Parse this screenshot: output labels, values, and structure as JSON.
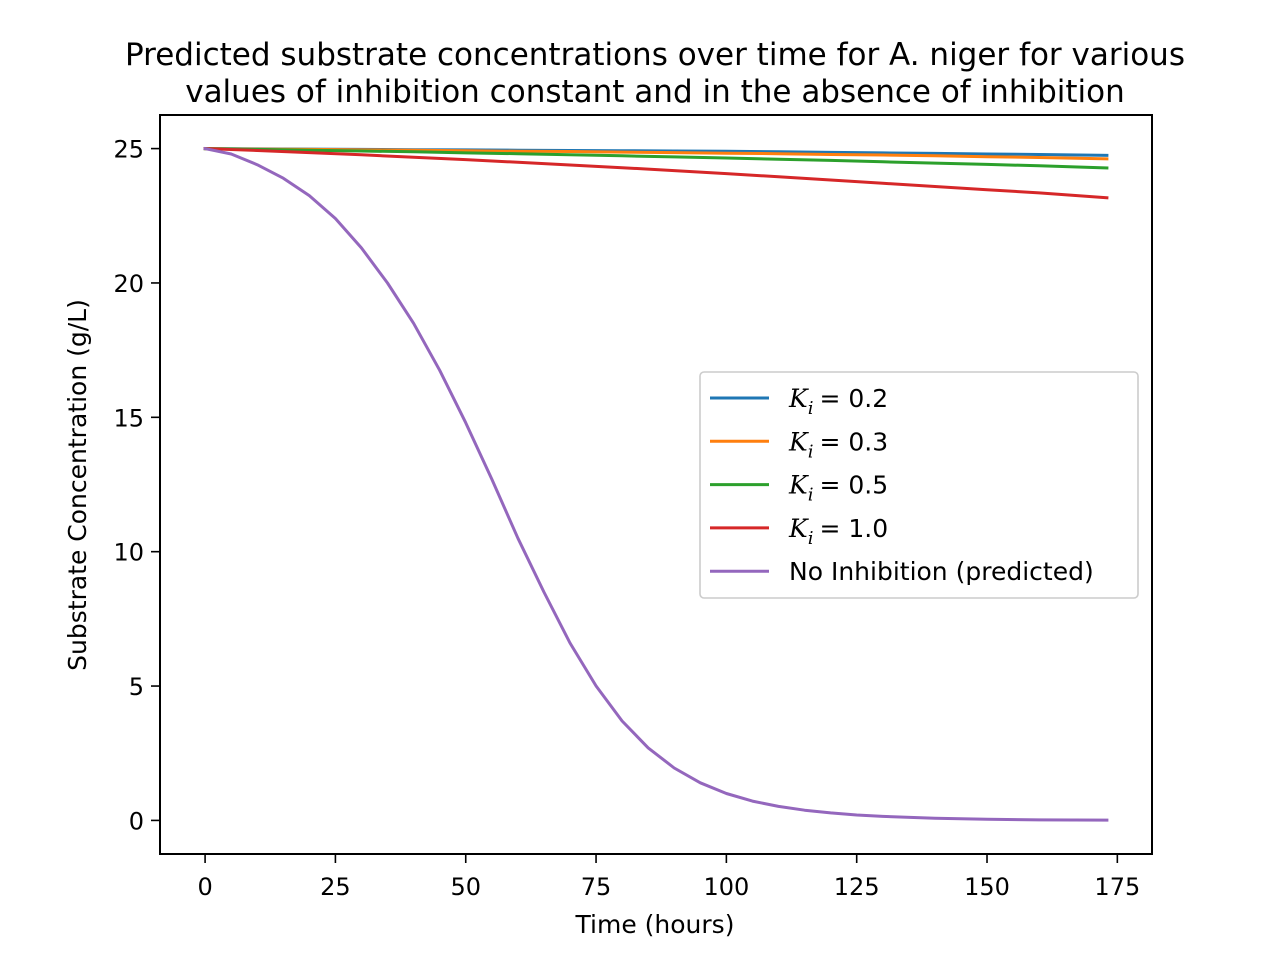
{
  "chart_data": {
    "type": "line",
    "title": [
      "Predicted substrate concentrations over time for A. niger for various",
      "values of inhibition constant and in the absence of inhibition"
    ],
    "xlabel": "Time (hours)",
    "ylabel": "Substrate Concentration (g/L)",
    "xlim": [
      -8.65,
      181.65
    ],
    "ylim": [
      -1.25,
      26.25
    ],
    "xticks": [
      0,
      25,
      50,
      75,
      100,
      125,
      150,
      175
    ],
    "yticks": [
      0,
      5,
      10,
      15,
      20,
      25
    ],
    "grid": false,
    "legend_position": "center-right",
    "x": [
      0,
      10,
      20,
      30,
      40,
      50,
      60,
      70,
      80,
      90,
      100,
      110,
      120,
      130,
      140,
      150,
      160,
      173
    ],
    "series": [
      {
        "name": "K_i = 0.2",
        "legend_parts": [
          "K",
          "i",
          "= 0.2"
        ],
        "color": "#1f77b4",
        "values": [
          25.0,
          24.99,
          24.98,
          24.97,
          24.96,
          24.95,
          24.94,
          24.93,
          24.92,
          24.91,
          24.9,
          24.88,
          24.86,
          24.84,
          24.82,
          24.8,
          24.78,
          24.75
        ]
      },
      {
        "name": "K_i = 0.3",
        "legend_parts": [
          "K",
          "i",
          "= 0.3"
        ],
        "color": "#ff7f0e",
        "values": [
          25.0,
          24.98,
          24.97,
          24.95,
          24.94,
          24.92,
          24.9,
          24.89,
          24.87,
          24.85,
          24.83,
          24.81,
          24.78,
          24.76,
          24.73,
          24.7,
          24.67,
          24.62
        ]
      },
      {
        "name": "K_i = 0.5",
        "legend_parts": [
          "K",
          "i",
          "= 0.5"
        ],
        "color": "#2ca02c",
        "values": [
          25.0,
          24.97,
          24.94,
          24.91,
          24.88,
          24.84,
          24.81,
          24.77,
          24.73,
          24.69,
          24.65,
          24.6,
          24.56,
          24.51,
          24.46,
          24.41,
          24.36,
          24.28
        ]
      },
      {
        "name": "K_i = 1.0",
        "legend_parts": [
          "K",
          "i",
          "= 1.0"
        ],
        "color": "#d62728",
        "values": [
          25.0,
          24.93,
          24.85,
          24.77,
          24.68,
          24.59,
          24.49,
          24.39,
          24.29,
          24.18,
          24.07,
          23.95,
          23.83,
          23.71,
          23.59,
          23.47,
          23.35,
          23.17
        ]
      },
      {
        "name": "No Inhibition (predicted)",
        "color": "#9467bd",
        "x": [
          0,
          5,
          10,
          15,
          20,
          25,
          30,
          35,
          40,
          45,
          50,
          55,
          60,
          65,
          70,
          75,
          80,
          85,
          90,
          95,
          100,
          105,
          110,
          115,
          120,
          125,
          130,
          140,
          150,
          160,
          173
        ],
        "values": [
          25.0,
          24.8,
          24.4,
          23.9,
          23.25,
          22.4,
          21.3,
          20.0,
          18.5,
          16.75,
          14.8,
          12.7,
          10.5,
          8.5,
          6.6,
          5.0,
          3.7,
          2.7,
          1.95,
          1.4,
          1.0,
          0.72,
          0.52,
          0.38,
          0.28,
          0.2,
          0.15,
          0.08,
          0.04,
          0.02,
          0.01
        ]
      }
    ]
  }
}
